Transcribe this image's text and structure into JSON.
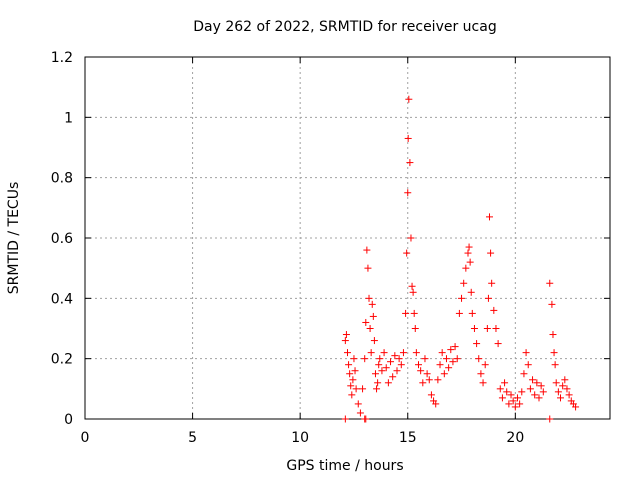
{
  "chart_data": {
    "type": "scatter",
    "title": "Day 262 of 2022, SRMTID for receiver ucag",
    "xlabel": "GPS time / hours",
    "ylabel": "SRMTID / TECUs",
    "xlim": [
      0,
      24.4
    ],
    "ylim": [
      0,
      1.2
    ],
    "x_ticks": [
      0,
      5,
      10,
      15,
      20
    ],
    "y_ticks": [
      0,
      0.2,
      0.4,
      0.6,
      0.8,
      1,
      1.2
    ],
    "x_tick_labels": [
      "0",
      "5",
      "10",
      "15",
      "20"
    ],
    "y_tick_labels": [
      "0",
      "0.2",
      "0.4",
      "0.6",
      "0.8",
      "1",
      "1.2"
    ],
    "grid": true,
    "marker": "+",
    "color": "#ff0000",
    "series": [
      {
        "name": "SRMTID",
        "x": [
          12.1,
          12.15,
          12.2,
          12.25,
          12.3,
          12.35,
          12.4,
          12.45,
          12.5,
          12.55,
          12.6,
          12.7,
          12.8,
          12.9,
          13.0,
          13.05,
          13.1,
          13.15,
          13.2,
          13.25,
          13.3,
          13.35,
          13.4,
          13.45,
          13.5,
          13.55,
          13.6,
          13.65,
          13.7,
          13.8,
          13.9,
          14.0,
          14.1,
          14.2,
          14.3,
          14.4,
          14.5,
          14.6,
          14.7,
          14.8,
          14.9,
          14.95,
          15.0,
          15.02,
          15.05,
          15.1,
          15.15,
          15.2,
          15.25,
          15.3,
          15.35,
          15.4,
          15.5,
          15.6,
          15.7,
          15.8,
          15.9,
          16.0,
          16.1,
          16.2,
          16.3,
          16.4,
          16.5,
          16.6,
          16.7,
          16.8,
          16.9,
          17.0,
          17.1,
          17.2,
          17.3,
          17.4,
          17.5,
          17.6,
          17.7,
          17.8,
          17.85,
          17.9,
          17.95,
          18.0,
          18.1,
          18.2,
          18.3,
          18.4,
          18.5,
          18.6,
          18.7,
          18.75,
          18.8,
          18.85,
          18.9,
          19.0,
          19.1,
          19.2,
          19.3,
          19.4,
          19.5,
          19.6,
          19.7,
          19.8,
          19.9,
          20.0,
          20.1,
          20.2,
          20.3,
          20.4,
          20.5,
          20.6,
          20.7,
          20.8,
          20.9,
          21.0,
          21.1,
          21.2,
          21.3,
          21.6,
          21.7,
          21.75,
          21.8,
          21.85,
          21.9,
          22.0,
          22.1,
          22.2,
          22.3,
          22.4,
          22.5,
          22.6,
          22.7,
          22.8,
          12.1,
          13.0,
          13.05,
          21.6
        ],
        "y": [
          0.26,
          0.28,
          0.22,
          0.18,
          0.15,
          0.11,
          0.08,
          0.13,
          0.2,
          0.16,
          0.1,
          0.05,
          0.02,
          0.1,
          0.2,
          0.32,
          0.56,
          0.5,
          0.4,
          0.3,
          0.22,
          0.38,
          0.34,
          0.26,
          0.15,
          0.1,
          0.12,
          0.18,
          0.2,
          0.16,
          0.22,
          0.17,
          0.12,
          0.19,
          0.14,
          0.21,
          0.16,
          0.2,
          0.18,
          0.22,
          0.35,
          0.55,
          0.75,
          0.93,
          1.06,
          0.85,
          0.6,
          0.44,
          0.42,
          0.35,
          0.3,
          0.22,
          0.18,
          0.16,
          0.12,
          0.2,
          0.15,
          0.13,
          0.08,
          0.06,
          0.05,
          0.13,
          0.18,
          0.22,
          0.15,
          0.2,
          0.17,
          0.23,
          0.19,
          0.24,
          0.2,
          0.35,
          0.4,
          0.45,
          0.5,
          0.55,
          0.57,
          0.52,
          0.42,
          0.35,
          0.3,
          0.25,
          0.2,
          0.15,
          0.12,
          0.18,
          0.3,
          0.4,
          0.67,
          0.55,
          0.45,
          0.36,
          0.3,
          0.25,
          0.1,
          0.07,
          0.12,
          0.09,
          0.05,
          0.08,
          0.06,
          0.04,
          0.07,
          0.05,
          0.09,
          0.15,
          0.22,
          0.18,
          0.1,
          0.13,
          0.08,
          0.12,
          0.07,
          0.11,
          0.09,
          0.45,
          0.38,
          0.28,
          0.22,
          0.18,
          0.12,
          0.09,
          0.07,
          0.11,
          0.13,
          0.1,
          0.08,
          0.06,
          0.05,
          0.04,
          0.0,
          0.0,
          0.0,
          0.0
        ]
      }
    ]
  }
}
